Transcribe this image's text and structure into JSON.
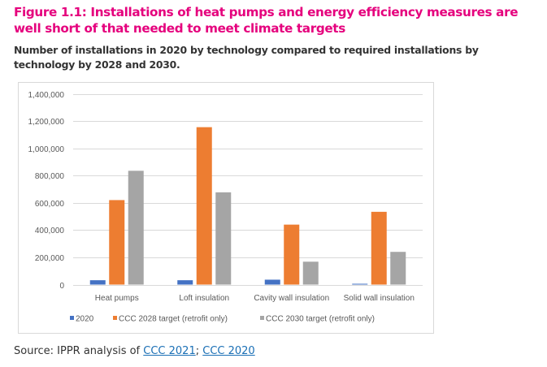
{
  "figure": {
    "title": "Figure 1.1: Installations of heat pumps and energy efficiency measures are well short of that needed to meet climate targets",
    "subtitle": "Number of installations in 2020 by technology compared to required installations by technology by 2028 and 2030."
  },
  "source": {
    "prefix": "Source: IPPR analysis of ",
    "link1": "CCC 2021",
    "separator": "; ",
    "link2": "CCC 2020"
  },
  "colors": {
    "title": "#E5007D",
    "series_2020": "#4472C4",
    "series_2028": "#ED7D31",
    "series_2030": "#A5A5A5",
    "link": "#1a6fb5"
  },
  "chart_data": {
    "type": "bar",
    "title": "",
    "xlabel": "",
    "ylabel": "",
    "ylim": [
      0,
      1400000
    ],
    "yticks": [
      0,
      200000,
      400000,
      600000,
      800000,
      1000000,
      1200000,
      1400000
    ],
    "ytick_labels": [
      "0",
      "200,000",
      "400,000",
      "600,000",
      "800,000",
      "1,000,000",
      "1,200,000",
      "1,400,000"
    ],
    "grid": true,
    "legend_position": "bottom",
    "categories": [
      "Heat pumps",
      "Loft insulation",
      "Cavity wall insulation",
      "Solid wall insulation"
    ],
    "series": [
      {
        "name": "2020",
        "color": "#4472C4",
        "values": [
          32000,
          32000,
          36000,
          6000
        ]
      },
      {
        "name": "CCC 2028 target (retrofit only)",
        "color": "#ED7D31",
        "values": [
          620000,
          1155000,
          440000,
          534000
        ]
      },
      {
        "name": "CCC 2030 target (retrofit only)",
        "color": "#A5A5A5",
        "values": [
          835000,
          677000,
          168000,
          240000
        ]
      }
    ]
  }
}
